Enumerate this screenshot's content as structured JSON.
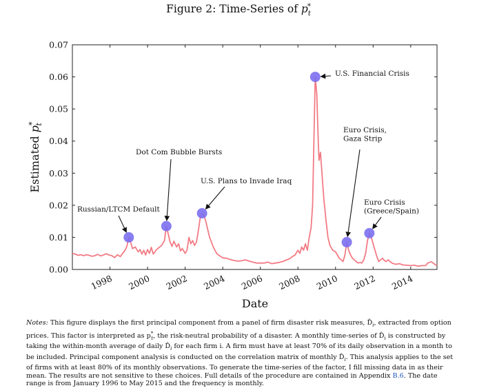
{
  "figure": {
    "title_prefix": "Figure 2: Time-Series of ",
    "title_symbol": "p",
    "title_sub": "t",
    "title_sup": "*"
  },
  "chart_data": {
    "type": "line",
    "xlabel": "Date",
    "ylabel": "Estimated p*t",
    "xlim": [
      1996.0,
      2015.4
    ],
    "ylim": [
      0.0,
      0.07
    ],
    "grid": false,
    "x_tick_labels": [
      "1998",
      "2000",
      "2002",
      "2004",
      "2006",
      "2008",
      "2010",
      "2012",
      "2014"
    ],
    "x_ticks": [
      1998,
      2000,
      2002,
      2004,
      2006,
      2008,
      2010,
      2012,
      2014
    ],
    "y_tick_labels": [
      "0.00",
      "0.01",
      "0.02",
      "0.03",
      "0.04",
      "0.05",
      "0.06",
      "0.07"
    ],
    "y_ticks": [
      0.0,
      0.01,
      0.02,
      0.03,
      0.04,
      0.05,
      0.06,
      0.07
    ],
    "line_color": "#f27b84",
    "marker_color": "#7b6ff0",
    "series": [
      {
        "values": [
          [
            1996.0,
            0.005
          ],
          [
            1996.15,
            0.0048
          ],
          [
            1996.3,
            0.0044
          ],
          [
            1996.45,
            0.0046
          ],
          [
            1996.6,
            0.0043
          ],
          [
            1996.75,
            0.0046
          ],
          [
            1996.9,
            0.0044
          ],
          [
            1997.05,
            0.0041
          ],
          [
            1997.2,
            0.0043
          ],
          [
            1997.35,
            0.0047
          ],
          [
            1997.5,
            0.0042
          ],
          [
            1997.65,
            0.0045
          ],
          [
            1997.8,
            0.0049
          ],
          [
            1997.95,
            0.0045
          ],
          [
            1998.1,
            0.0043
          ],
          [
            1998.25,
            0.0037
          ],
          [
            1998.4,
            0.0046
          ],
          [
            1998.55,
            0.004
          ],
          [
            1998.7,
            0.0052
          ],
          [
            1998.8,
            0.006
          ],
          [
            1998.9,
            0.0072
          ],
          [
            1999.0,
            0.01
          ],
          [
            1999.1,
            0.0085
          ],
          [
            1999.2,
            0.0065
          ],
          [
            1999.35,
            0.007
          ],
          [
            1999.5,
            0.0055
          ],
          [
            1999.6,
            0.0062
          ],
          [
            1999.7,
            0.0048
          ],
          [
            1999.8,
            0.006
          ],
          [
            1999.9,
            0.0045
          ],
          [
            2000.0,
            0.0062
          ],
          [
            2000.1,
            0.005
          ],
          [
            2000.2,
            0.0069
          ],
          [
            2000.3,
            0.0048
          ],
          [
            2000.45,
            0.006
          ],
          [
            2000.6,
            0.0068
          ],
          [
            2000.75,
            0.0075
          ],
          [
            2000.9,
            0.009
          ],
          [
            2001.0,
            0.0135
          ],
          [
            2001.1,
            0.011
          ],
          [
            2001.2,
            0.0085
          ],
          [
            2001.3,
            0.0072
          ],
          [
            2001.4,
            0.0088
          ],
          [
            2001.55,
            0.007
          ],
          [
            2001.65,
            0.008
          ],
          [
            2001.75,
            0.0058
          ],
          [
            2001.85,
            0.0065
          ],
          [
            2002.0,
            0.005
          ],
          [
            2002.1,
            0.006
          ],
          [
            2002.2,
            0.01
          ],
          [
            2002.3,
            0.008
          ],
          [
            2002.4,
            0.009
          ],
          [
            2002.5,
            0.0075
          ],
          [
            2002.6,
            0.0085
          ],
          [
            2002.7,
            0.012
          ],
          [
            2002.8,
            0.016
          ],
          [
            2002.9,
            0.0175
          ],
          [
            2003.0,
            0.0168
          ],
          [
            2003.1,
            0.015
          ],
          [
            2003.2,
            0.0125
          ],
          [
            2003.3,
            0.01
          ],
          [
            2003.4,
            0.0085
          ],
          [
            2003.5,
            0.007
          ],
          [
            2003.6,
            0.0058
          ],
          [
            2003.7,
            0.0048
          ],
          [
            2003.85,
            0.0042
          ],
          [
            2004.0,
            0.0036
          ],
          [
            2004.2,
            0.0035
          ],
          [
            2004.4,
            0.0031
          ],
          [
            2004.6,
            0.0028
          ],
          [
            2004.8,
            0.0026
          ],
          [
            2005.0,
            0.0027
          ],
          [
            2005.2,
            0.003
          ],
          [
            2005.4,
            0.0026
          ],
          [
            2005.6,
            0.0023
          ],
          [
            2005.8,
            0.002
          ],
          [
            2006.0,
            0.002
          ],
          [
            2006.2,
            0.002
          ],
          [
            2006.4,
            0.0023
          ],
          [
            2006.6,
            0.0018
          ],
          [
            2006.8,
            0.002
          ],
          [
            2007.0,
            0.0022
          ],
          [
            2007.2,
            0.0025
          ],
          [
            2007.4,
            0.003
          ],
          [
            2007.55,
            0.0033
          ],
          [
            2007.7,
            0.004
          ],
          [
            2007.85,
            0.0045
          ],
          [
            2008.0,
            0.006
          ],
          [
            2008.1,
            0.005
          ],
          [
            2008.2,
            0.007
          ],
          [
            2008.3,
            0.006
          ],
          [
            2008.4,
            0.008
          ],
          [
            2008.5,
            0.006
          ],
          [
            2008.6,
            0.01
          ],
          [
            2008.7,
            0.013
          ],
          [
            2008.78,
            0.02
          ],
          [
            2008.85,
            0.04
          ],
          [
            2008.92,
            0.06
          ],
          [
            2009.0,
            0.055
          ],
          [
            2009.08,
            0.04
          ],
          [
            2009.12,
            0.034
          ],
          [
            2009.2,
            0.0365
          ],
          [
            2009.28,
            0.03
          ],
          [
            2009.38,
            0.022
          ],
          [
            2009.5,
            0.015
          ],
          [
            2009.6,
            0.01
          ],
          [
            2009.7,
            0.0075
          ],
          [
            2009.85,
            0.006
          ],
          [
            2010.0,
            0.0055
          ],
          [
            2010.1,
            0.0045
          ],
          [
            2010.2,
            0.0035
          ],
          [
            2010.3,
            0.003
          ],
          [
            2010.4,
            0.0025
          ],
          [
            2010.5,
            0.0045
          ],
          [
            2010.6,
            0.0085
          ],
          [
            2010.7,
            0.006
          ],
          [
            2010.8,
            0.0045
          ],
          [
            2010.9,
            0.0035
          ],
          [
            2011.0,
            0.003
          ],
          [
            2011.1,
            0.0025
          ],
          [
            2011.2,
            0.002
          ],
          [
            2011.3,
            0.0022
          ],
          [
            2011.4,
            0.002
          ],
          [
            2011.5,
            0.003
          ],
          [
            2011.6,
            0.005
          ],
          [
            2011.7,
            0.009
          ],
          [
            2011.8,
            0.0113
          ],
          [
            2011.9,
            0.01
          ],
          [
            2012.0,
            0.008
          ],
          [
            2012.1,
            0.006
          ],
          [
            2012.2,
            0.004
          ],
          [
            2012.3,
            0.0025
          ],
          [
            2012.4,
            0.003
          ],
          [
            2012.5,
            0.0035
          ],
          [
            2012.6,
            0.0028
          ],
          [
            2012.7,
            0.0025
          ],
          [
            2012.8,
            0.003
          ],
          [
            2012.9,
            0.0025
          ],
          [
            2013.0,
            0.002
          ],
          [
            2013.2,
            0.0016
          ],
          [
            2013.4,
            0.0018
          ],
          [
            2013.6,
            0.0014
          ],
          [
            2013.8,
            0.0013
          ],
          [
            2014.0,
            0.0012
          ],
          [
            2014.2,
            0.0013
          ],
          [
            2014.4,
            0.001
          ],
          [
            2014.6,
            0.0012
          ],
          [
            2014.8,
            0.0012
          ],
          [
            2014.9,
            0.002
          ],
          [
            2015.0,
            0.0022
          ],
          [
            2015.1,
            0.0024
          ],
          [
            2015.2,
            0.002
          ],
          [
            2015.3,
            0.0015
          ],
          [
            2015.4,
            0.0012
          ]
        ]
      }
    ],
    "events": [
      {
        "label": "Russian/LTCM Default",
        "x": 1999.0,
        "y": 0.01
      },
      {
        "label": "Dot Com Bubble Bursts",
        "x": 2001.0,
        "y": 0.0135
      },
      {
        "label": "U.S. Plans to Invade Iraq",
        "x": 2002.9,
        "y": 0.0175
      },
      {
        "label": "U.S. Financial Crisis",
        "x": 2008.92,
        "y": 0.06
      },
      {
        "label_lines": [
          "Euro Crisis,",
          "Gaza Strip"
        ],
        "x": 2010.6,
        "y": 0.0085
      },
      {
        "label_lines": [
          "Euro Crisis",
          "(Greece/Spain)"
        ],
        "x": 2011.8,
        "y": 0.0113
      }
    ]
  },
  "notes": {
    "label": "Notes:",
    "text_a": " This figure displays the first principal component from a panel of firm disaster risk measures, D̂",
    "text_b": ", extracted from option prices. This factor is interpreted as p",
    "text_c": ", the risk-neutral probability of a disaster. A monthly time-series of D̂",
    "text_d": " is constructed by taking the within-month average of daily D̂",
    "text_e": " for each firm i. A firm must have at least 70% of its daily observation in a month to be included. Principal component analysis is conducted on the correlation matrix of monthly D̂",
    "text_f": ". This analysis applies to the set of firms with at least 80% of its monthly observations. To generate the time-series of the factor, I fill missing data in as their mean. The results are not sensitive to these choices. Full details of the procedure are contained in Appendix ",
    "appendix_ref": "B.6",
    "text_g": ". The date range is from January 1996 to May 2015 and the frequency is monthly."
  }
}
